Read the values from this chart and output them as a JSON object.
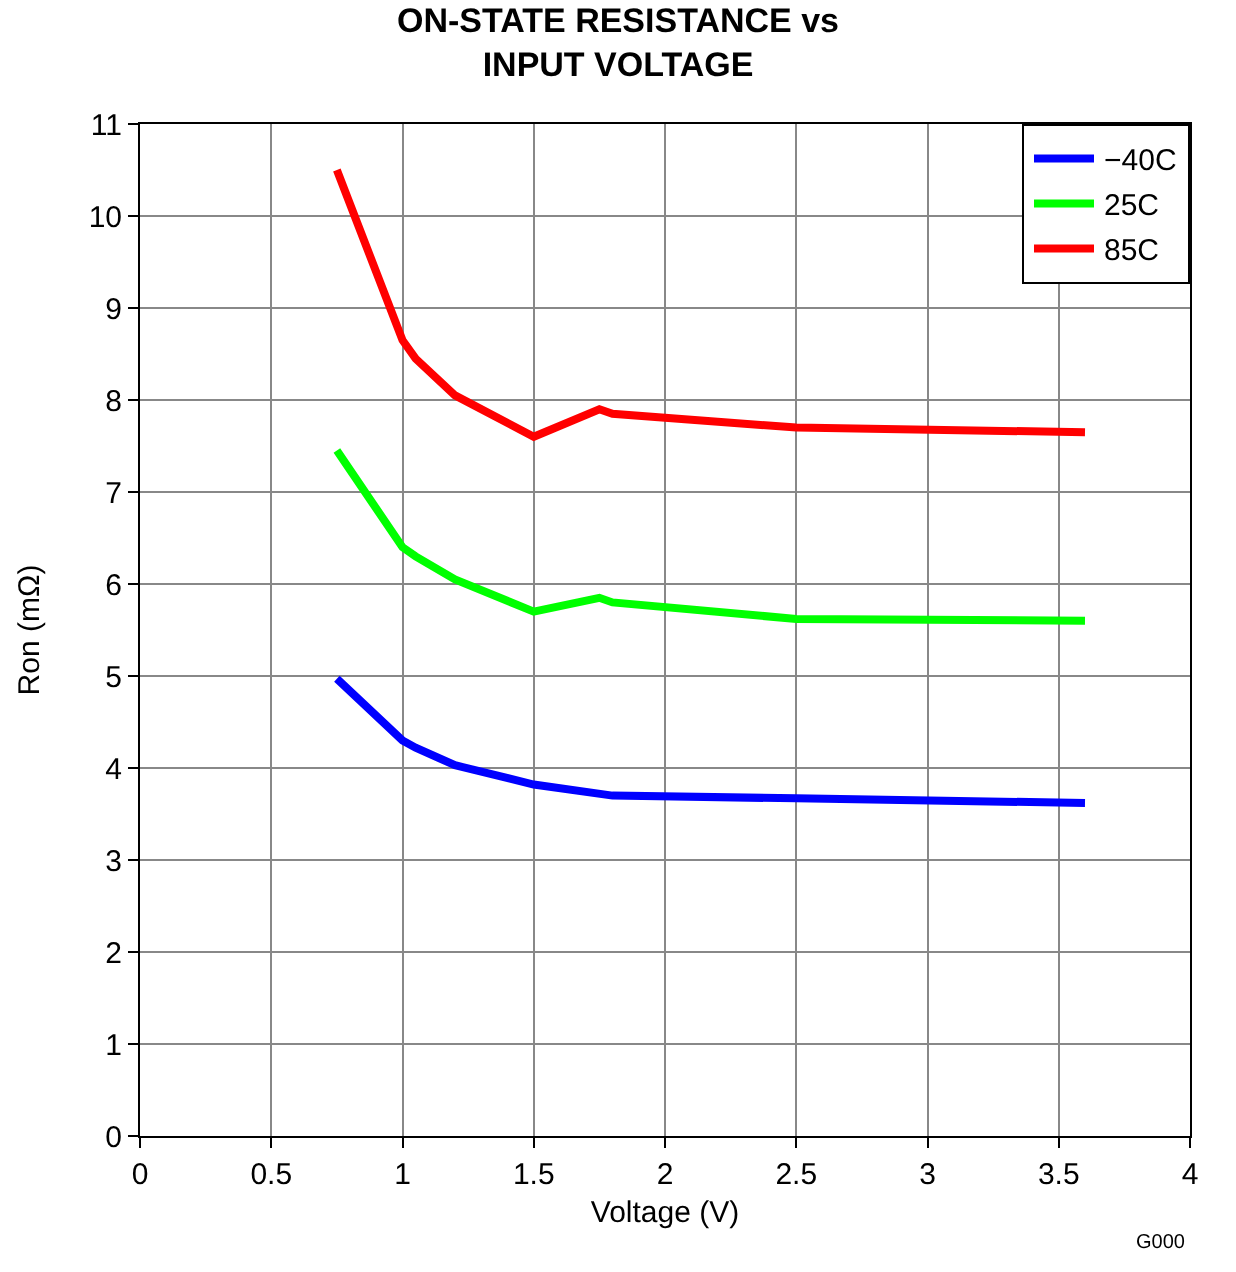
{
  "chart_data": {
    "type": "line",
    "title": "ON-STATE RESISTANCE vs\nINPUT VOLTAGE",
    "xlabel": "Voltage (V)",
    "ylabel": "Ron (mΩ)",
    "series": [
      {
        "name": "−40C",
        "color": "#0000ff",
        "x": [
          0.75,
          1.0,
          1.05,
          1.2,
          1.5,
          1.8,
          2.5,
          3.6
        ],
        "values": [
          4.97,
          4.3,
          4.22,
          4.03,
          3.82,
          3.7,
          3.67,
          3.62
        ]
      },
      {
        "name": "25C",
        "color": "#00ff00",
        "x": [
          0.75,
          1.0,
          1.05,
          1.2,
          1.5,
          1.75,
          1.8,
          2.5,
          3.6
        ],
        "values": [
          7.45,
          6.4,
          6.3,
          6.05,
          5.7,
          5.85,
          5.8,
          5.62,
          5.6
        ]
      },
      {
        "name": "85C",
        "color": "#ff0000",
        "x": [
          0.75,
          1.0,
          1.05,
          1.2,
          1.5,
          1.75,
          1.8,
          2.5,
          3.6
        ],
        "values": [
          10.5,
          8.65,
          8.45,
          8.05,
          7.6,
          7.9,
          7.85,
          7.7,
          7.65
        ]
      }
    ],
    "xlim": [
      0,
      4
    ],
    "xticks": [
      0,
      0.5,
      1,
      1.5,
      2,
      2.5,
      3,
      3.5,
      4
    ],
    "ylim": [
      0,
      11
    ],
    "yticks": [
      0,
      1,
      2,
      3,
      4,
      5,
      6,
      7,
      8,
      9,
      10,
      11
    ],
    "grid": true,
    "legend": "top right",
    "marker": "none",
    "line_style": "solid",
    "annotations": [
      "G000"
    ]
  }
}
